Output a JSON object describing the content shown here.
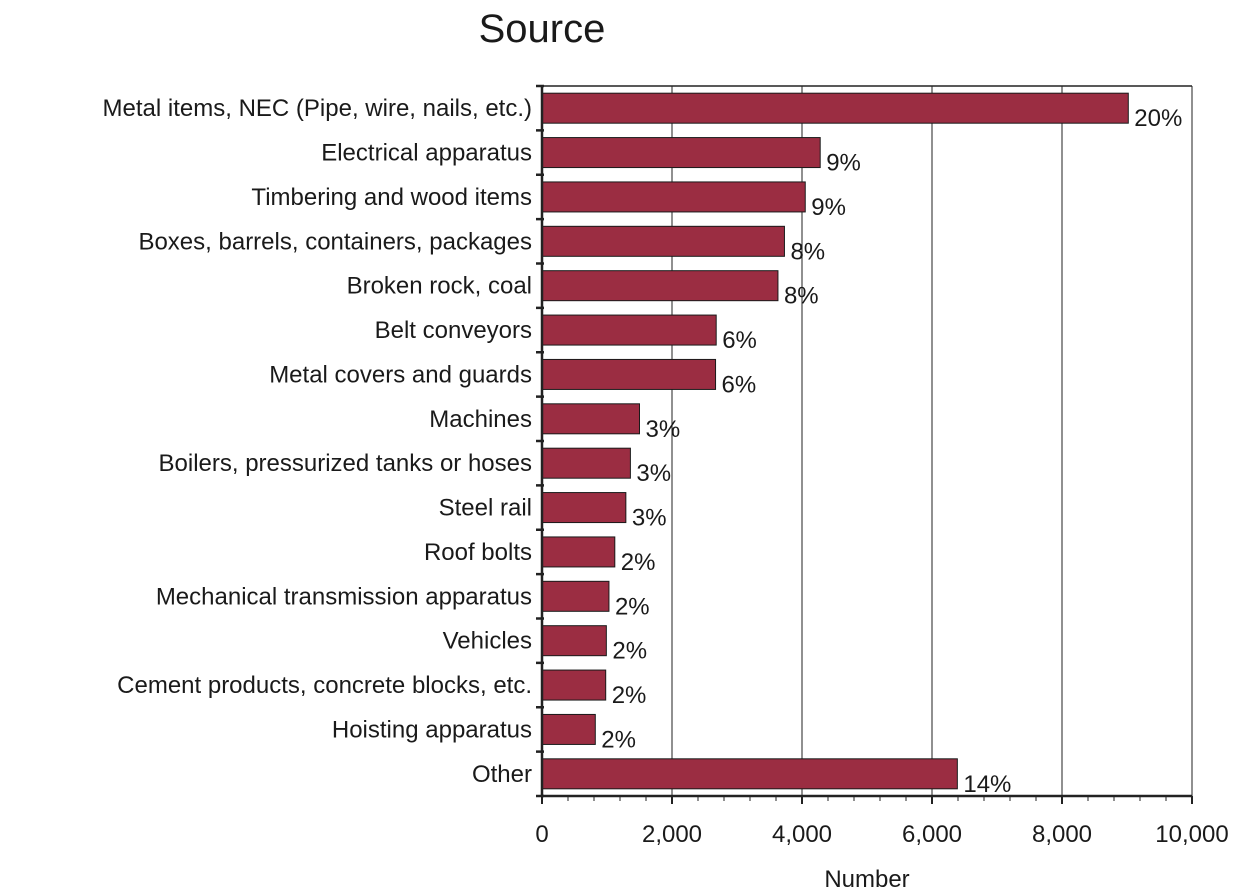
{
  "chart_data": {
    "type": "bar",
    "orientation": "horizontal",
    "title": "Source",
    "xlabel": "Number",
    "ylabel": "",
    "xlim": [
      0,
      10000
    ],
    "xticks": [
      0,
      2000,
      4000,
      6000,
      8000,
      10000
    ],
    "xtick_labels": [
      "0",
      "2,000",
      "4,000",
      "6,000",
      "8,000",
      "10,000"
    ],
    "grid": "vertical lines at major ticks",
    "bar_color": "#9b2d42",
    "categories": [
      "Metal items, NEC (Pipe, wire, nails, etc.)",
      "Electrical apparatus",
      "Timbering and wood items",
      "Boxes, barrels, containers, packages",
      "Broken rock, coal",
      "Belt conveyors",
      "Metal covers and guards",
      "Machines",
      "Boilers, pressurized tanks or hoses",
      "Steel rail",
      "Roof bolts",
      "Mechanical transmission apparatus",
      "Vehicles",
      "Cement products, concrete blocks, etc.",
      "Hoisting apparatus",
      "Other"
    ],
    "values": [
      9020,
      4280,
      4050,
      3730,
      3630,
      2680,
      2670,
      1500,
      1360,
      1290,
      1120,
      1030,
      990,
      980,
      820,
      6390
    ],
    "data_labels": [
      "20%",
      "9%",
      "9%",
      "8%",
      "8%",
      "6%",
      "6%",
      "3%",
      "3%",
      "3%",
      "2%",
      "2%",
      "2%",
      "2%",
      "2%",
      "14%"
    ]
  }
}
